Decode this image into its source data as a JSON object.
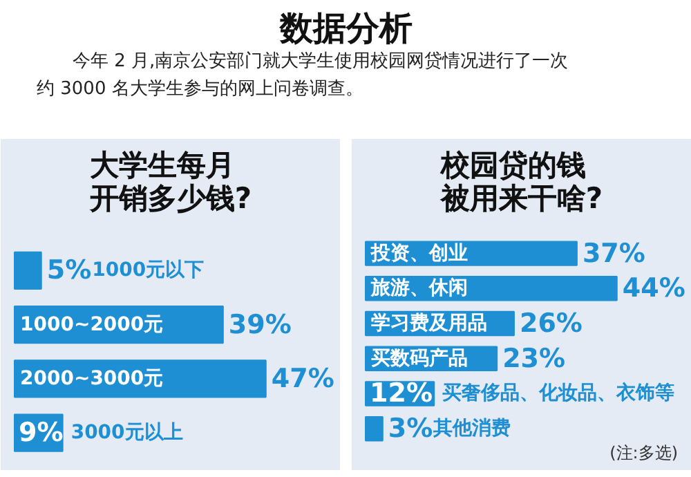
{
  "chart_data": [
    {
      "type": "other",
      "title": "数据分析",
      "annotations": [
        "今年 2 月,南京公安部门就大学生使用校园网贷情况进行了一次",
        "约 3000 名大学生参与的网上问卷调查。"
      ]
    },
    {
      "type": "bar",
      "orientation": "horizontal",
      "title": "大学生每月开销多少钱?",
      "categories": [
        "1000元以下",
        "1000~2000元",
        "2000~3000元",
        "3000元以上"
      ],
      "values": [
        5,
        39,
        47,
        9
      ],
      "value_labels": [
        "5%",
        "39%",
        "47%",
        "9%"
      ],
      "color": "#1e8fd2"
    },
    {
      "type": "bar",
      "orientation": "horizontal",
      "title": "校园贷的钱被用来干啥?",
      "categories": [
        "投资、创业",
        "旅游、休闲",
        "学习费及用品",
        "买数码产品",
        "买奢侈品、化妆品、衣饰等",
        "其他消费"
      ],
      "values": [
        37,
        44,
        26,
        23,
        12,
        3
      ],
      "value_labels": [
        "37%",
        "44%",
        "26%",
        "23%",
        "12%",
        "3%"
      ],
      "color": "#1e8fd2",
      "annotations": [
        "(注:多选)"
      ]
    }
  ]
}
